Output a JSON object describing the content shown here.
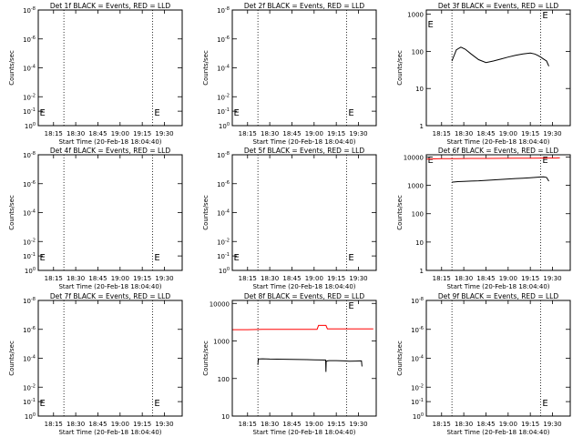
{
  "chart_data": [
    {
      "type": "line",
      "title": "Det 1f BLACK = Events, RED = LLD",
      "xlabel": "Start Time (20-Feb-18 18:04:40)",
      "ylabel": "Counts/sec",
      "x_ticks": [
        "18:15",
        "18:30",
        "18:45",
        "19:00",
        "19:15",
        "19:30"
      ],
      "x_tick_minutes": [
        15,
        30,
        45,
        60,
        75,
        90
      ],
      "xlim_minutes": [
        4.67,
        102
      ],
      "yscale": "log",
      "y_ticks": [
        "10^-8",
        "10^-6",
        "10^-4",
        "10^-2",
        "10^-1",
        "10^0"
      ],
      "y_tick_values": [
        1e-08,
        1e-06,
        0.0001,
        0.01,
        0.1,
        1
      ],
      "ylim": [
        1,
        1e-08
      ],
      "ylim_display": "top-to-bottom: 10^-8 at top, 10^0 at bottom",
      "vlines_minutes": [
        22,
        82
      ],
      "markers": [
        {
          "label": "E",
          "x_minutes": 5,
          "y_frac": 0.88
        },
        {
          "label": "E",
          "x_minutes": 82.5,
          "y_frac": 0.88
        }
      ],
      "series": []
    },
    {
      "type": "line",
      "title": "Det 2f BLACK = Events, RED = LLD",
      "xlabel": "Start Time (20-Feb-18 18:04:40)",
      "ylabel": "Counts/sec",
      "x_ticks": [
        "18:15",
        "18:30",
        "18:45",
        "19:00",
        "19:15",
        "19:30"
      ],
      "x_tick_minutes": [
        15,
        30,
        45,
        60,
        75,
        90
      ],
      "xlim_minutes": [
        4.67,
        102
      ],
      "yscale": "log",
      "y_ticks": [
        "10^-8",
        "10^-6",
        "10^-4",
        "10^-2",
        "10^-1",
        "10^0"
      ],
      "y_tick_values": [
        1e-08,
        1e-06,
        0.0001,
        0.01,
        0.1,
        1
      ],
      "ylim": [
        1,
        1e-08
      ],
      "vlines_minutes": [
        22,
        82
      ],
      "markers": [
        {
          "label": "E",
          "x_minutes": 5,
          "y_frac": 0.88
        },
        {
          "label": "E",
          "x_minutes": 82.5,
          "y_frac": 0.88
        }
      ],
      "series": []
    },
    {
      "type": "line",
      "title": "Det 3f BLACK = Events, RED = LLD",
      "xlabel": "Start Time (20-Feb-18 18:04:40)",
      "ylabel": "Counts/sec",
      "x_ticks": [
        "18:15",
        "18:30",
        "18:45",
        "19:00",
        "19:15",
        "19:30"
      ],
      "x_tick_minutes": [
        15,
        30,
        45,
        60,
        75,
        90
      ],
      "xlim_minutes": [
        4.67,
        102
      ],
      "yscale": "log",
      "y_ticks": [
        "1",
        "10",
        "100",
        "1000"
      ],
      "y_tick_values": [
        1,
        10,
        100,
        1000
      ],
      "ylim": [
        1,
        1300
      ],
      "vlines_minutes": [
        22,
        82
      ],
      "markers": [
        {
          "label": "E",
          "x_minutes": 5,
          "y_frac": 0.12
        },
        {
          "label": "E",
          "x_minutes": 82.5,
          "y_frac": 0.04
        }
      ],
      "series": [
        {
          "color": "#000000",
          "x": [
            22,
            25,
            28,
            31,
            35,
            40,
            45,
            50,
            55,
            60,
            65,
            70,
            75,
            78,
            80,
            82,
            84,
            86,
            87.5
          ],
          "y": [
            55,
            110,
            130,
            115,
            85,
            60,
            50,
            55,
            62,
            70,
            78,
            85,
            90,
            85,
            78,
            70,
            62,
            55,
            40
          ]
        }
      ]
    },
    {
      "type": "line",
      "title": "Det 4f BLACK = Events, RED = LLD",
      "xlabel": "Start Time (20-Feb-18 18:04:40)",
      "ylabel": "Counts/sec",
      "x_ticks": [
        "18:15",
        "18:30",
        "18:45",
        "19:00",
        "19:15",
        "19:30"
      ],
      "x_tick_minutes": [
        15,
        30,
        45,
        60,
        75,
        90
      ],
      "xlim_minutes": [
        4.67,
        102
      ],
      "yscale": "log",
      "y_ticks": [
        "10^-8",
        "10^-6",
        "10^-4",
        "10^-2",
        "10^-1",
        "10^0"
      ],
      "y_tick_values": [
        1e-08,
        1e-06,
        0.0001,
        0.01,
        0.1,
        1
      ],
      "ylim": [
        1,
        1e-08
      ],
      "vlines_minutes": [
        22,
        82
      ],
      "markers": [
        {
          "label": "E",
          "x_minutes": 5,
          "y_frac": 0.88
        },
        {
          "label": "E",
          "x_minutes": 82.5,
          "y_frac": 0.88
        }
      ],
      "series": []
    },
    {
      "type": "line",
      "title": "Det 5f BLACK = Events, RED = LLD",
      "xlabel": "Start Time (20-Feb-18 18:04:40)",
      "ylabel": "Counts/sec",
      "x_ticks": [
        "18:15",
        "18:30",
        "18:45",
        "19:00",
        "19:15",
        "19:30"
      ],
      "x_tick_minutes": [
        15,
        30,
        45,
        60,
        75,
        90
      ],
      "xlim_minutes": [
        4.67,
        102
      ],
      "yscale": "log",
      "y_ticks": [
        "10^-8",
        "10^-6",
        "10^-4",
        "10^-2",
        "10^-1",
        "10^0"
      ],
      "y_tick_values": [
        1e-08,
        1e-06,
        0.0001,
        0.01,
        0.1,
        1
      ],
      "ylim": [
        1,
        1e-08
      ],
      "vlines_minutes": [
        22,
        82
      ],
      "markers": [
        {
          "label": "E",
          "x_minutes": 5,
          "y_frac": 0.88
        },
        {
          "label": "E",
          "x_minutes": 82.5,
          "y_frac": 0.88
        }
      ],
      "series": []
    },
    {
      "type": "line",
      "title": "Det 6f BLACK = Events, RED = LLD",
      "xlabel": "Start Time (20-Feb-18 18:04:40)",
      "ylabel": "Counts/sec",
      "x_ticks": [
        "18:15",
        "18:30",
        "18:45",
        "19:00",
        "19:15",
        "19:30"
      ],
      "x_tick_minutes": [
        15,
        30,
        45,
        60,
        75,
        90
      ],
      "xlim_minutes": [
        4.67,
        102
      ],
      "yscale": "log",
      "y_ticks": [
        "1",
        "10",
        "100",
        "1000",
        "10000"
      ],
      "y_tick_values": [
        1,
        10,
        100,
        1000,
        10000
      ],
      "ylim": [
        1,
        12000
      ],
      "vlines_minutes": [
        22,
        82
      ],
      "markers": [
        {
          "label": "E",
          "x_minutes": 5,
          "y_frac": 0.04
        },
        {
          "label": "E",
          "x_minutes": 82.5,
          "y_frac": 0.04
        }
      ],
      "series": [
        {
          "color": "#000000",
          "x": [
            22,
            26,
            30,
            35,
            40,
            45,
            50,
            55,
            60,
            65,
            70,
            75,
            80,
            82,
            84,
            86,
            87.5
          ],
          "y": [
            1300,
            1350,
            1380,
            1420,
            1450,
            1500,
            1560,
            1620,
            1680,
            1740,
            1800,
            1860,
            1950,
            1980,
            2000,
            1900,
            1400
          ]
        },
        {
          "color": "#ff0000",
          "x": [
            5,
            15,
            25,
            35,
            45,
            55,
            65,
            75,
            85,
            92,
            95
          ],
          "y": [
            8500,
            8700,
            8800,
            8900,
            8900,
            9000,
            9100,
            9100,
            9200,
            9200,
            9300
          ]
        }
      ]
    },
    {
      "type": "line",
      "title": "Det 7f BLACK = Events, RED = LLD",
      "xlabel": "Start Time (20-Feb-18 18:04:40)",
      "ylabel": "Counts/sec",
      "x_ticks": [
        "18:15",
        "18:30",
        "18:45",
        "19:00",
        "19:15",
        "19:30"
      ],
      "x_tick_minutes": [
        15,
        30,
        45,
        60,
        75,
        90
      ],
      "xlim_minutes": [
        4.67,
        102
      ],
      "yscale": "log",
      "y_ticks": [
        "10^-8",
        "10^-6",
        "10^-4",
        "10^-2",
        "10^-1",
        "10^0"
      ],
      "y_tick_values": [
        1e-08,
        1e-06,
        0.0001,
        0.01,
        0.1,
        1
      ],
      "ylim": [
        1,
        1e-08
      ],
      "vlines_minutes": [
        22,
        82
      ],
      "markers": [
        {
          "label": "E",
          "x_minutes": 5,
          "y_frac": 0.88
        },
        {
          "label": "E",
          "x_minutes": 82.5,
          "y_frac": 0.88
        }
      ],
      "series": []
    },
    {
      "type": "line",
      "title": "Det 8f BLACK = Events, RED = LLD",
      "xlabel": "Start Time (20-Feb-18 18:04:40)",
      "ylabel": "Counts/sec",
      "x_ticks": [
        "18:15",
        "18:30",
        "18:45",
        "19:00",
        "19:15",
        "19:30"
      ],
      "x_tick_minutes": [
        15,
        30,
        45,
        60,
        75,
        90
      ],
      "xlim_minutes": [
        4.67,
        102
      ],
      "yscale": "log",
      "y_ticks": [
        "10",
        "100",
        "1000",
        "10000"
      ],
      "y_tick_values": [
        10,
        100,
        1000,
        10000
      ],
      "ylim": [
        10,
        12000
      ],
      "vlines_minutes": [
        22,
        82
      ],
      "markers": [
        {
          "label": "E",
          "x_minutes": 82.5,
          "y_frac": 0.04
        }
      ],
      "series": [
        {
          "color": "#000000",
          "x": [
            22,
            22.3,
            25,
            30,
            35,
            40,
            45,
            50,
            55,
            60,
            65,
            67.8,
            68,
            68.2,
            70,
            75,
            80,
            84,
            88,
            92,
            92.4
          ],
          "y": [
            230,
            330,
            335,
            330,
            328,
            325,
            322,
            320,
            318,
            315,
            312,
            310,
            150,
            290,
            300,
            300,
            295,
            290,
            292,
            295,
            210
          ]
        },
        {
          "color": "#ff0000",
          "x": [
            5,
            15,
            25,
            35,
            45,
            55,
            62,
            63,
            68,
            69,
            70,
            80,
            90,
            100
          ],
          "y": [
            2000,
            2000,
            2050,
            2050,
            2050,
            2050,
            2050,
            2600,
            2600,
            2100,
            2100,
            2100,
            2100,
            2100
          ]
        }
      ]
    },
    {
      "type": "line",
      "title": "Det 9f BLACK = Events, RED = LLD",
      "xlabel": "Start Time (20-Feb-18 18:04:40)",
      "ylabel": "Counts/sec",
      "x_ticks": [
        "18:15",
        "18:30",
        "18:45",
        "19:00",
        "19:15",
        "19:30"
      ],
      "x_tick_minutes": [
        15,
        30,
        45,
        60,
        75,
        90
      ],
      "xlim_minutes": [
        4.67,
        102
      ],
      "yscale": "log",
      "y_ticks": [
        "10^-8",
        "10^-6",
        "10^-4",
        "10^-2",
        "10^-1",
        "10^0"
      ],
      "y_tick_values": [
        1e-08,
        1e-06,
        0.0001,
        0.01,
        0.1,
        1
      ],
      "ylim": [
        1,
        1e-08
      ],
      "vlines_minutes": [
        22,
        82
      ],
      "markers": [
        {
          "label": "E",
          "x_minutes": 82.5,
          "y_frac": 0.88
        }
      ],
      "series": []
    }
  ]
}
